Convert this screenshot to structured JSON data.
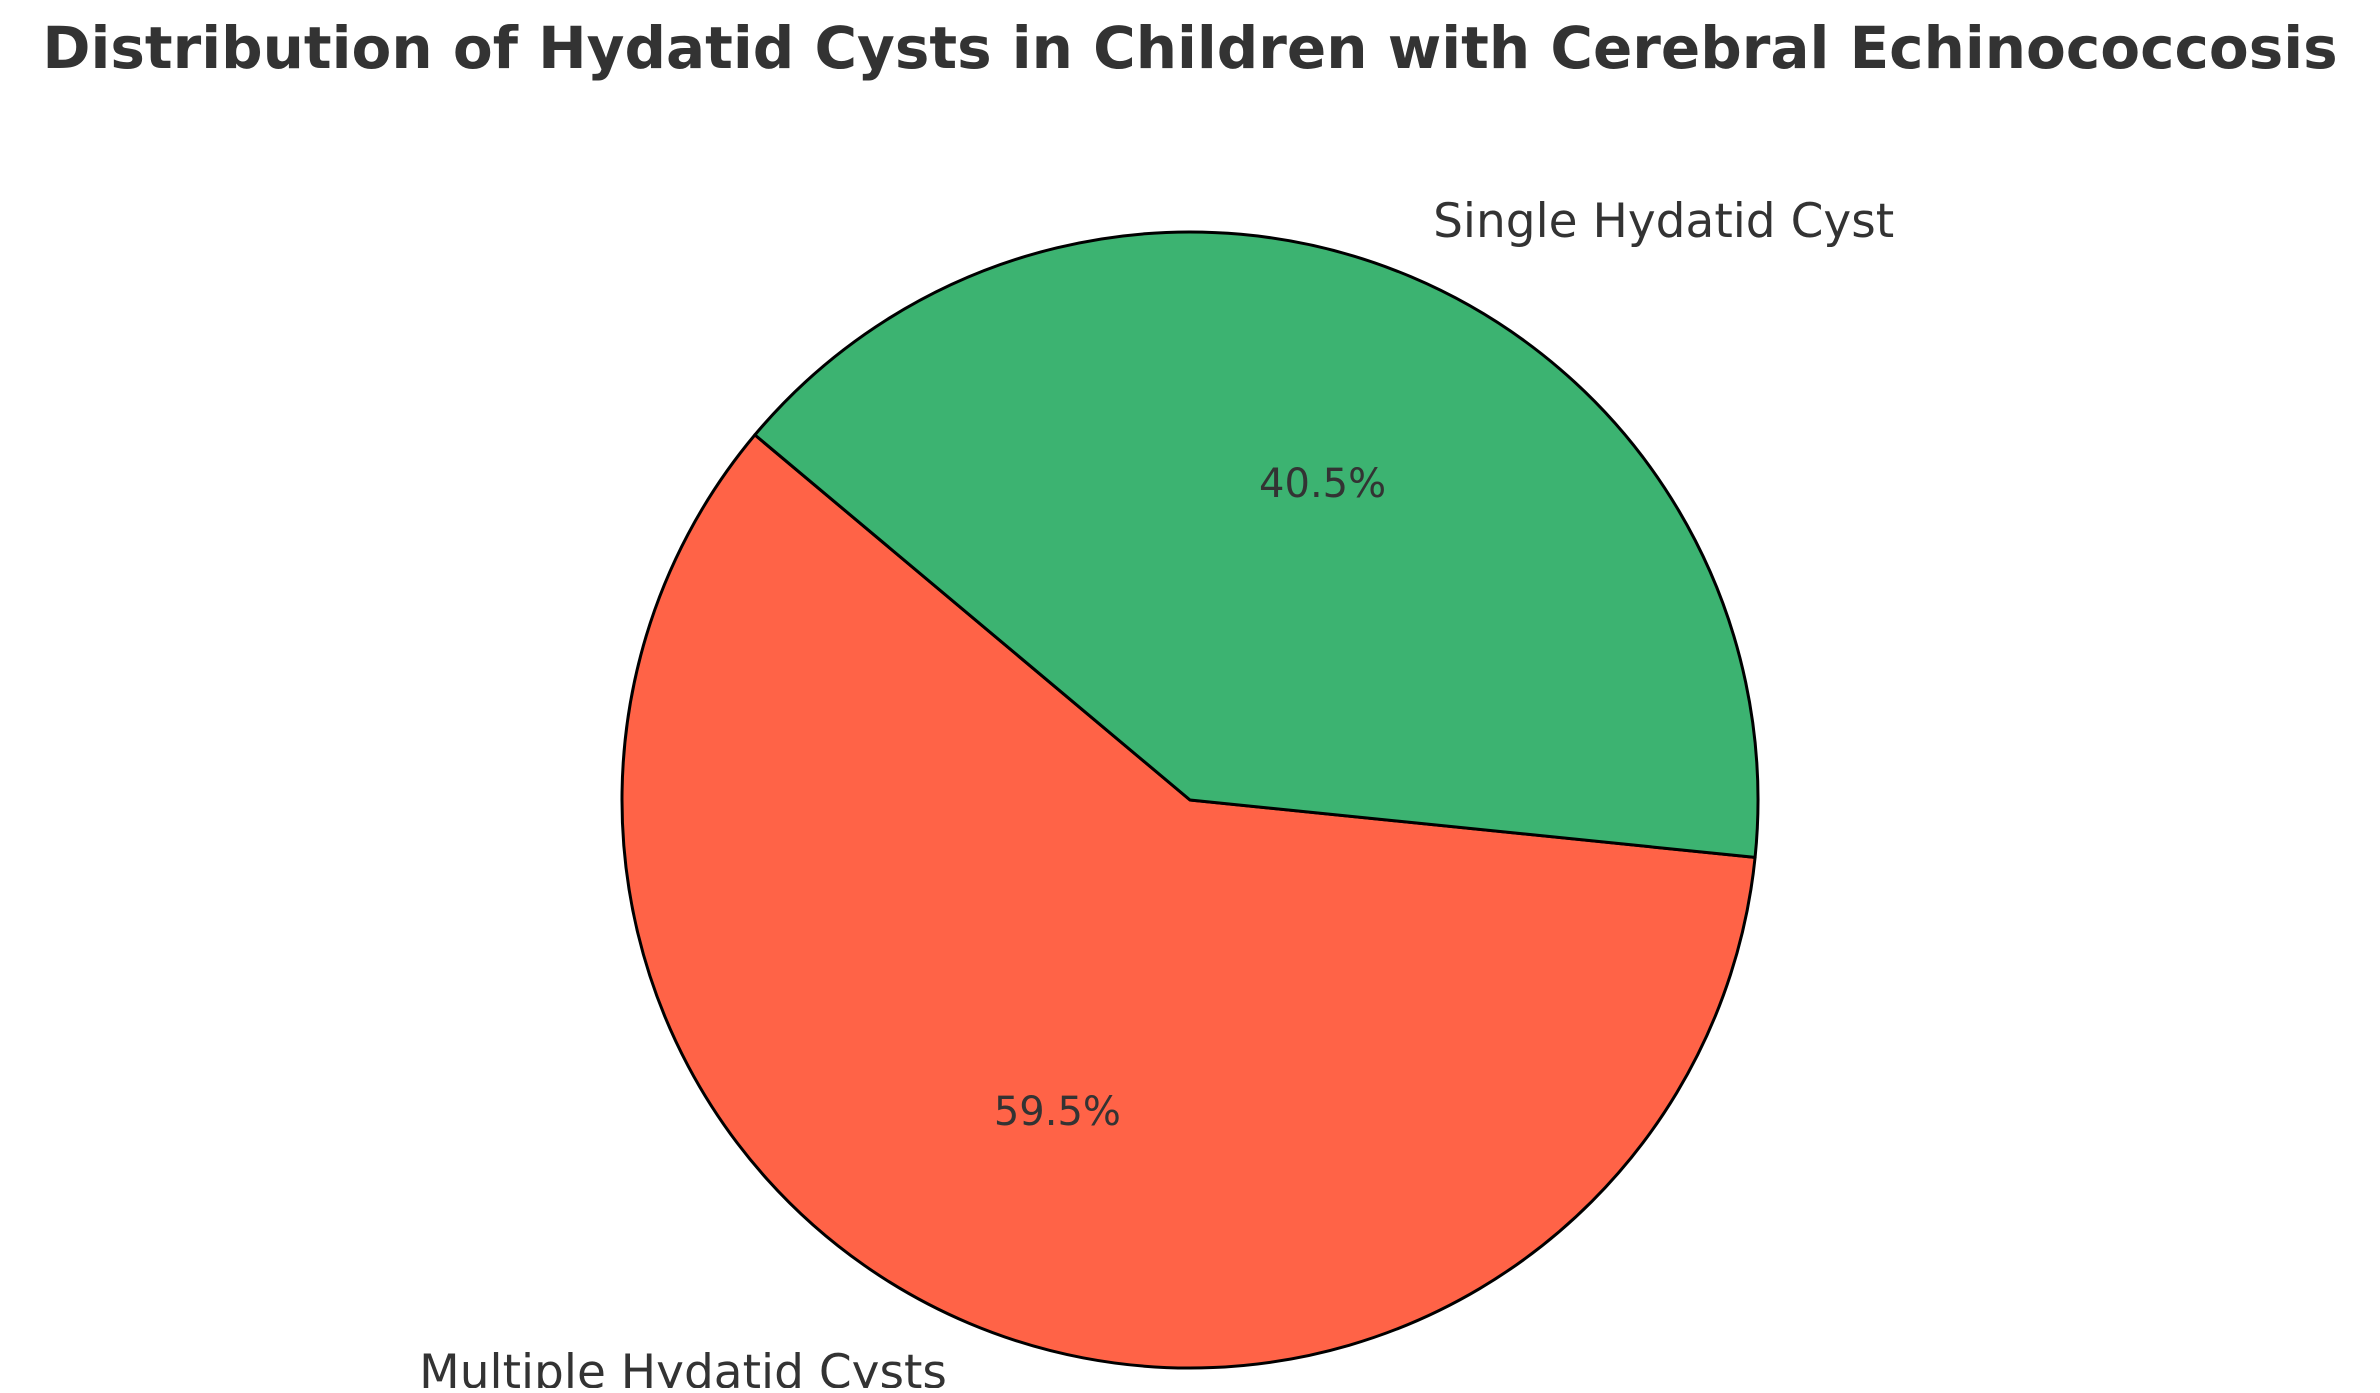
{
  "chart_data": {
    "type": "pie",
    "title": "Distribution of Hydatid Cysts in Children with Cerebral Echinococcosis",
    "slices": [
      {
        "label": "Multiple Hydatid Cysts",
        "value": 59.5,
        "percent_label": "59.5%",
        "color": "#ff6347"
      },
      {
        "label": "Single Hydatid Cyst",
        "value": 40.5,
        "percent_label": "40.5%",
        "color": "#3cb371"
      }
    ],
    "edge_color": "#000000",
    "text_color": "#333333"
  }
}
